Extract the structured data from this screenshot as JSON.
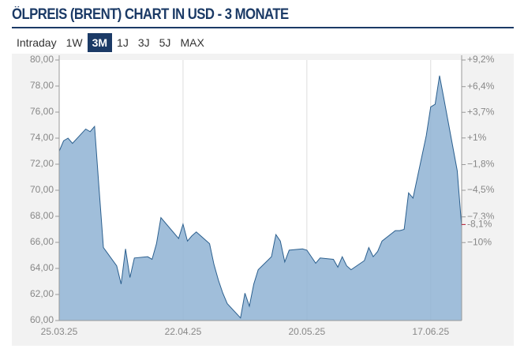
{
  "chart_data": {
    "type": "area",
    "title": "ÖLPREIS (BRENT) CHART IN USD - 3 MONATE",
    "x": [
      "25.03.25",
      "26.03.25",
      "27.03.25",
      "28.03.25",
      "31.03.25",
      "01.04.25",
      "02.04.25",
      "03.04.25",
      "04.04.25",
      "07.04.25",
      "08.04.25",
      "09.04.25",
      "10.04.25",
      "11.04.25",
      "14.04.25",
      "15.04.25",
      "16.04.25",
      "17.04.25",
      "21.04.25",
      "22.04.25",
      "23.04.25",
      "24.04.25",
      "25.04.25",
      "28.04.25",
      "29.04.25",
      "30.04.25",
      "01.05.25",
      "02.05.25",
      "05.05.25",
      "06.05.25",
      "07.05.25",
      "08.05.25",
      "09.05.25",
      "12.05.25",
      "13.05.25",
      "14.05.25",
      "15.05.25",
      "16.05.25",
      "19.05.25",
      "20.05.25",
      "21.05.25",
      "22.05.25",
      "23.05.25",
      "26.05.25",
      "27.05.25",
      "28.05.25",
      "29.05.25",
      "30.05.25",
      "02.06.25",
      "03.06.25",
      "04.06.25",
      "05.06.25",
      "06.06.25",
      "09.06.25",
      "10.06.25",
      "11.06.25",
      "12.06.25",
      "13.06.25",
      "16.06.25",
      "17.06.25",
      "18.06.25",
      "19.06.25",
      "20.06.25",
      "23.06.25",
      "24.06.25"
    ],
    "series": [
      {
        "name": "Brent",
        "color": "#2b5f8e",
        "fill": "#8fb3d3",
        "values": [
          73.0,
          73.8,
          74.0,
          73.6,
          74.7,
          74.5,
          74.9,
          70.2,
          65.6,
          64.2,
          62.8,
          65.5,
          63.3,
          64.8,
          64.9,
          64.7,
          65.9,
          67.9,
          66.3,
          67.4,
          66.1,
          66.5,
          66.8,
          65.9,
          64.3,
          63.1,
          62.1,
          61.3,
          60.2,
          62.1,
          61.1,
          62.8,
          63.9,
          64.9,
          66.6,
          66.1,
          64.5,
          65.4,
          65.5,
          65.4,
          64.9,
          64.4,
          64.8,
          64.7,
          64.1,
          64.9,
          64.2,
          63.9,
          64.6,
          65.6,
          64.9,
          65.3,
          66.1,
          66.9,
          66.9,
          67.0,
          69.8,
          69.4,
          74.2,
          76.4,
          76.6,
          78.8,
          77.0,
          71.5,
          67.2
        ]
      }
    ],
    "xlim": [
      "25.03.25",
      "24.06.25"
    ],
    "xticks": [
      "25.03.25",
      "22.04.25",
      "20.05.25",
      "17.06.25"
    ],
    "ylim": [
      60,
      80
    ],
    "yticks": [
      {
        "value": 60,
        "label": "60,00"
      },
      {
        "value": 62,
        "label": "62,00"
      },
      {
        "value": 64,
        "label": "64,00"
      },
      {
        "value": 66,
        "label": "66,00"
      },
      {
        "value": 68,
        "label": "68,00"
      },
      {
        "value": 70,
        "label": "70,00"
      },
      {
        "value": 72,
        "label": "72,00"
      },
      {
        "value": 74,
        "label": "74,00"
      },
      {
        "value": 76,
        "label": "76,00"
      },
      {
        "value": 78,
        "label": "78,00"
      },
      {
        "value": 80,
        "label": "80,00"
      }
    ],
    "y2lim": [
      -18.2,
      9.2
    ],
    "y2ticks": [
      {
        "value": 9.2,
        "label": "+9,2%"
      },
      {
        "value": 6.4,
        "label": "+6,4%"
      },
      {
        "value": 3.7,
        "label": "+3,7%"
      },
      {
        "value": 1,
        "label": "+1%"
      },
      {
        "value": -1.8,
        "label": "−1,8%"
      },
      {
        "value": -4.5,
        "label": "−4,5%"
      },
      {
        "value": -7.3,
        "label": "−7,3%"
      },
      {
        "value": -10,
        "label": "−10%"
      }
    ],
    "current": {
      "value": -8.1,
      "label": "-8,1%",
      "color": "#b0122a"
    },
    "grid": true
  },
  "tabs": {
    "items": [
      "Intraday",
      "1W",
      "3M",
      "1J",
      "3J",
      "5J",
      "MAX"
    ],
    "active": 2
  }
}
